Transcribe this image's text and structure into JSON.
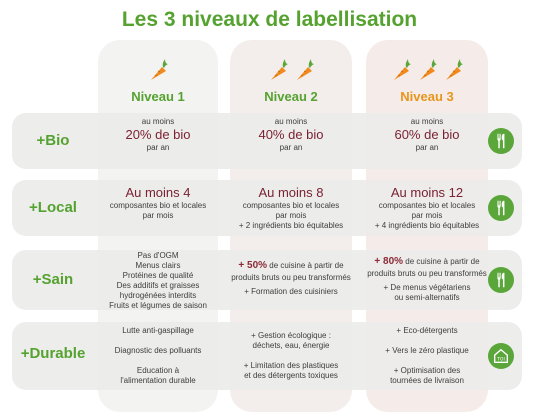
{
  "title": "Les 3 niveaux de labellisation",
  "colors": {
    "green": "#55a230",
    "level1": "#55a230",
    "level2": "#55a230",
    "level3": "#e8951c",
    "accent": "#7b2231"
  },
  "levels": [
    {
      "name": "Niveau 1",
      "carrots": 1
    },
    {
      "name": "Niveau 2",
      "carrots": 2
    },
    {
      "name": "Niveau 3",
      "carrots": 3
    }
  ],
  "rows": [
    {
      "label": "+Bio",
      "icon": "fork-knife-icon",
      "cells": [
        {
          "pre": "au moins",
          "big": "20% de bio",
          "post": "par an"
        },
        {
          "pre": "au moins",
          "big": "40% de bio",
          "post": "par an"
        },
        {
          "pre": "au moins",
          "big": "60% de bio",
          "post": "par an"
        }
      ]
    },
    {
      "label": "+Local",
      "icon": "fork-knife-icon",
      "cells": [
        {
          "big": "Au moins 4",
          "lines": [
            "composantes bio et locales",
            "par mois"
          ]
        },
        {
          "big": "Au moins 8",
          "lines": [
            "composantes bio et locales",
            "par mois",
            "+ 2 ingrédients bio équitables"
          ]
        },
        {
          "big": "Au moins 12",
          "lines": [
            "composantes bio et locales",
            "par mois",
            "+ 4 ingrédients bio équitables"
          ]
        }
      ]
    },
    {
      "label": "+Sain",
      "icon": "fork-knife-icon",
      "cells": [
        {
          "lines": [
            "Pas d'OGM",
            "Menus clairs",
            "Protéines de qualité",
            "Des additifs et graisses",
            "hydrogénées interdits",
            "Fruits et légumes de saison"
          ]
        },
        {
          "pct": "+ 50%",
          "pct_rest": " de cuisine à partir de",
          "lines": [
            "produits bruts ou peu transformés"
          ],
          "extra": [
            "+ Formation des cuisiniers"
          ]
        },
        {
          "pct": "+ 80%",
          "pct_rest": " de cuisine à partir de",
          "lines": [
            "produits bruts ou peu transformés"
          ],
          "extra": [
            "+ De menus végétariens",
            "ou semi-alternatifs"
          ]
        }
      ]
    },
    {
      "label": "+Durable",
      "icon": "house-toi-icon",
      "cells": [
        {
          "groups": [
            [
              "Lutte anti-gaspillage"
            ],
            [
              "Diagnostic des polluants"
            ],
            [
              "Education à",
              "l'alimentation durable"
            ]
          ]
        },
        {
          "groups": [
            [
              "+ Gestion écologique :",
              "déchets, eau, énergie"
            ],
            [
              "+ Limitation des plastiques",
              "et des détergents toxiques"
            ]
          ]
        },
        {
          "groups": [
            [
              "+ Eco-détergents"
            ],
            [
              "+ Vers le zéro plastique"
            ],
            [
              "+ Optimisation des",
              "tournées de livraison"
            ]
          ]
        }
      ]
    }
  ]
}
